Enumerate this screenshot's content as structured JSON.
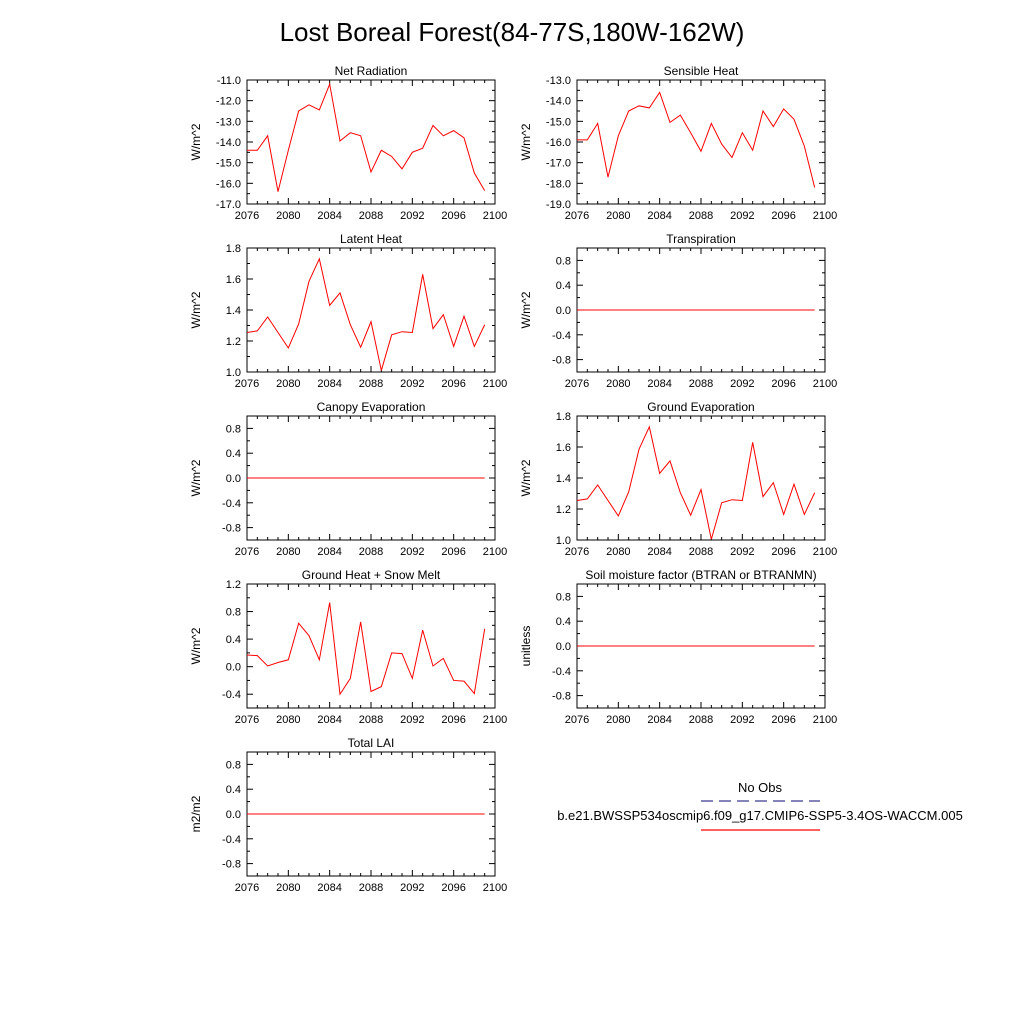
{
  "figure_title": "Lost Boreal Forest(84-77S,180W-162W)",
  "legend": {
    "entries": [
      {
        "label": "No Obs",
        "color": "#3b3b8f",
        "style": "dashed"
      },
      {
        "label": "b.e21.BWSSP534oscmip6.f09_g17.CMIP6-SSP5-3.4OS-WACCM.005",
        "color": "#ff0000",
        "style": "solid"
      }
    ]
  },
  "chart_data": [
    {
      "id": "net-radiation",
      "type": "line",
      "title": "Net Radiation",
      "ylabel": "W/m^2",
      "xlim": [
        2076,
        2100
      ],
      "ylim": [
        -17,
        -11
      ],
      "xticks": [
        "2076",
        "2080",
        "2084",
        "2088",
        "2092",
        "2096",
        "2100"
      ],
      "yticks": [
        "-11.0",
        "-12.0",
        "-13.0",
        "-14.0",
        "-15.0",
        "-16.0",
        "-17.0"
      ],
      "x": [
        2076,
        2077,
        2078,
        2079,
        2080,
        2081,
        2082,
        2083,
        2084,
        2085,
        2086,
        2087,
        2088,
        2089,
        2090,
        2091,
        2092,
        2093,
        2094,
        2095,
        2096,
        2097,
        2098,
        2099
      ],
      "series": [
        {
          "name": "b.e21.BWSSP534oscmip6.f09_g17.CMIP6-SSP5-3.4OS-WACCM.005",
          "color": "#ff0000",
          "values": [
            -14.4,
            -14.4,
            -13.7,
            -16.4,
            -14.4,
            -12.5,
            -12.2,
            -12.45,
            -11.2,
            -13.95,
            -13.55,
            -13.7,
            -15.45,
            -14.4,
            -14.7,
            -15.3,
            -14.5,
            -14.3,
            -13.2,
            -13.7,
            -13.45,
            -13.8,
            -15.5,
            -16.35
          ]
        }
      ]
    },
    {
      "id": "sensible-heat",
      "type": "line",
      "title": "Sensible Heat",
      "ylabel": "W/m^2",
      "xlim": [
        2076,
        2100
      ],
      "ylim": [
        -19,
        -13
      ],
      "xticks": [
        "2076",
        "2080",
        "2084",
        "2088",
        "2092",
        "2096",
        "2100"
      ],
      "yticks": [
        "-13.0",
        "-14.0",
        "-15.0",
        "-16.0",
        "-17.0",
        "-18.0",
        "-19.0"
      ],
      "x": [
        2076,
        2077,
        2078,
        2079,
        2080,
        2081,
        2082,
        2083,
        2084,
        2085,
        2086,
        2087,
        2088,
        2089,
        2090,
        2091,
        2092,
        2093,
        2094,
        2095,
        2096,
        2097,
        2098,
        2099
      ],
      "series": [
        {
          "name": "b.e21.BWSSP534oscmip6.f09_g17.CMIP6-SSP5-3.4OS-WACCM.005",
          "color": "#ff0000",
          "values": [
            -15.9,
            -15.9,
            -15.1,
            -17.7,
            -15.7,
            -14.5,
            -14.25,
            -14.35,
            -13.6,
            -15.05,
            -14.7,
            -15.55,
            -16.45,
            -15.1,
            -16.1,
            -16.75,
            -15.55,
            -16.4,
            -14.5,
            -15.25,
            -14.4,
            -14.9,
            -16.2,
            -18.2
          ]
        }
      ]
    },
    {
      "id": "latent-heat",
      "type": "line",
      "title": "Latent Heat",
      "ylabel": "W/m^2",
      "xlim": [
        2076,
        2100
      ],
      "ylim": [
        1.0,
        1.8
      ],
      "xticks": [
        "2076",
        "2080",
        "2084",
        "2088",
        "2092",
        "2096",
        "2100"
      ],
      "yticks": [
        "1.8",
        "1.6",
        "1.4",
        "1.2",
        "1.0"
      ],
      "x": [
        2076,
        2077,
        2078,
        2079,
        2080,
        2081,
        2082,
        2083,
        2084,
        2085,
        2086,
        2087,
        2088,
        2089,
        2090,
        2091,
        2092,
        2093,
        2094,
        2095,
        2096,
        2097,
        2098,
        2099
      ],
      "series": [
        {
          "name": "b.e21.BWSSP534oscmip6.f09_g17.CMIP6-SSP5-3.4OS-WACCM.005",
          "color": "#ff0000",
          "values": [
            1.255,
            1.265,
            1.355,
            1.255,
            1.155,
            1.31,
            1.585,
            1.73,
            1.43,
            1.51,
            1.305,
            1.16,
            1.325,
            1.01,
            1.24,
            1.26,
            1.255,
            1.63,
            1.28,
            1.37,
            1.165,
            1.36,
            1.165,
            1.305
          ]
        }
      ]
    },
    {
      "id": "transpiration",
      "type": "line",
      "title": "Transpiration",
      "ylabel": "W/m^2",
      "xlim": [
        2076,
        2100
      ],
      "ylim": [
        -1.0,
        1.0
      ],
      "xticks": [
        "2076",
        "2080",
        "2084",
        "2088",
        "2092",
        "2096",
        "2100"
      ],
      "yticks": [
        "0.8",
        "0.4",
        "0.0",
        "-0.4",
        "-0.8"
      ],
      "x": [
        2076,
        2077,
        2078,
        2079,
        2080,
        2081,
        2082,
        2083,
        2084,
        2085,
        2086,
        2087,
        2088,
        2089,
        2090,
        2091,
        2092,
        2093,
        2094,
        2095,
        2096,
        2097,
        2098,
        2099
      ],
      "series": [
        {
          "name": "b.e21.BWSSP534oscmip6.f09_g17.CMIP6-SSP5-3.4OS-WACCM.005",
          "color": "#ff0000",
          "values": [
            0,
            0,
            0,
            0,
            0,
            0,
            0,
            0,
            0,
            0,
            0,
            0,
            0,
            0,
            0,
            0,
            0,
            0,
            0,
            0,
            0,
            0,
            0,
            0
          ]
        }
      ]
    },
    {
      "id": "canopy-evaporation",
      "type": "line",
      "title": "Canopy Evaporation",
      "ylabel": "W/m^2",
      "xlim": [
        2076,
        2100
      ],
      "ylim": [
        -1.0,
        1.0
      ],
      "xticks": [
        "2076",
        "2080",
        "2084",
        "2088",
        "2092",
        "2096",
        "2100"
      ],
      "yticks": [
        "0.8",
        "0.4",
        "0.0",
        "-0.4",
        "-0.8"
      ],
      "x": [
        2076,
        2077,
        2078,
        2079,
        2080,
        2081,
        2082,
        2083,
        2084,
        2085,
        2086,
        2087,
        2088,
        2089,
        2090,
        2091,
        2092,
        2093,
        2094,
        2095,
        2096,
        2097,
        2098,
        2099
      ],
      "series": [
        {
          "name": "b.e21.BWSSP534oscmip6.f09_g17.CMIP6-SSP5-3.4OS-WACCM.005",
          "color": "#ff0000",
          "values": [
            0,
            0,
            0,
            0,
            0,
            0,
            0,
            0,
            0,
            0,
            0,
            0,
            0,
            0,
            0,
            0,
            0,
            0,
            0,
            0,
            0,
            0,
            0,
            0
          ]
        }
      ]
    },
    {
      "id": "ground-evaporation",
      "type": "line",
      "title": "Ground Evaporation",
      "ylabel": "W/m^2",
      "xlim": [
        2076,
        2100
      ],
      "ylim": [
        1.0,
        1.8
      ],
      "xticks": [
        "2076",
        "2080",
        "2084",
        "2088",
        "2092",
        "2096",
        "2100"
      ],
      "yticks": [
        "1.8",
        "1.6",
        "1.4",
        "1.2",
        "1.0"
      ],
      "x": [
        2076,
        2077,
        2078,
        2079,
        2080,
        2081,
        2082,
        2083,
        2084,
        2085,
        2086,
        2087,
        2088,
        2089,
        2090,
        2091,
        2092,
        2093,
        2094,
        2095,
        2096,
        2097,
        2098,
        2099
      ],
      "series": [
        {
          "name": "b.e21.BWSSP534oscmip6.f09_g17.CMIP6-SSP5-3.4OS-WACCM.005",
          "color": "#ff0000",
          "values": [
            1.255,
            1.265,
            1.355,
            1.255,
            1.155,
            1.31,
            1.585,
            1.73,
            1.43,
            1.51,
            1.305,
            1.16,
            1.325,
            1.005,
            1.24,
            1.26,
            1.255,
            1.63,
            1.28,
            1.37,
            1.165,
            1.36,
            1.165,
            1.305
          ]
        }
      ]
    },
    {
      "id": "ground-heat-snow-melt",
      "type": "line",
      "title": "Ground Heat + Snow Melt",
      "ylabel": "W/m^2",
      "xlim": [
        2076,
        2100
      ],
      "ylim": [
        -0.6,
        1.2
      ],
      "xticks": [
        "2076",
        "2080",
        "2084",
        "2088",
        "2092",
        "2096",
        "2100"
      ],
      "yticks": [
        "1.2",
        "0.8",
        "0.4",
        "0.0",
        "-0.4"
      ],
      "x": [
        2076,
        2077,
        2078,
        2079,
        2080,
        2081,
        2082,
        2083,
        2084,
        2085,
        2086,
        2087,
        2088,
        2089,
        2090,
        2091,
        2092,
        2093,
        2094,
        2095,
        2096,
        2097,
        2098,
        2099
      ],
      "series": [
        {
          "name": "b.e21.BWSSP534oscmip6.f09_g17.CMIP6-SSP5-3.4OS-WACCM.005",
          "color": "#ff0000",
          "values": [
            0.17,
            0.16,
            0.01,
            0.06,
            0.1,
            0.63,
            0.45,
            0.1,
            0.93,
            -0.4,
            -0.17,
            0.65,
            -0.36,
            -0.29,
            0.2,
            0.19,
            -0.17,
            0.53,
            0.01,
            0.12,
            -0.2,
            -0.21,
            -0.39,
            0.55
          ]
        }
      ]
    },
    {
      "id": "soil-moisture-factor",
      "type": "line",
      "title": "Soil moisture factor (BTRAN or BTRANMN)",
      "ylabel": "unitless",
      "xlim": [
        2076,
        2100
      ],
      "ylim": [
        -1.0,
        1.0
      ],
      "xticks": [
        "2076",
        "2080",
        "2084",
        "2088",
        "2092",
        "2096",
        "2100"
      ],
      "yticks": [
        "0.8",
        "0.4",
        "0.0",
        "-0.4",
        "-0.8"
      ],
      "x": [
        2076,
        2077,
        2078,
        2079,
        2080,
        2081,
        2082,
        2083,
        2084,
        2085,
        2086,
        2087,
        2088,
        2089,
        2090,
        2091,
        2092,
        2093,
        2094,
        2095,
        2096,
        2097,
        2098,
        2099
      ],
      "series": [
        {
          "name": "b.e21.BWSSP534oscmip6.f09_g17.CMIP6-SSP5-3.4OS-WACCM.005",
          "color": "#ff0000",
          "values": [
            0,
            0,
            0,
            0,
            0,
            0,
            0,
            0,
            0,
            0,
            0,
            0,
            0,
            0,
            0,
            0,
            0,
            0,
            0,
            0,
            0,
            0,
            0,
            0
          ]
        }
      ]
    },
    {
      "id": "total-lai",
      "type": "line",
      "title": "Total LAI",
      "ylabel": "m2/m2",
      "xlim": [
        2076,
        2100
      ],
      "ylim": [
        -1.0,
        1.0
      ],
      "xticks": [
        "2076",
        "2080",
        "2084",
        "2088",
        "2092",
        "2096",
        "2100"
      ],
      "yticks": [
        "0.8",
        "0.4",
        "0.0",
        "-0.4",
        "-0.8"
      ],
      "x": [
        2076,
        2077,
        2078,
        2079,
        2080,
        2081,
        2082,
        2083,
        2084,
        2085,
        2086,
        2087,
        2088,
        2089,
        2090,
        2091,
        2092,
        2093,
        2094,
        2095,
        2096,
        2097,
        2098,
        2099
      ],
      "series": [
        {
          "name": "b.e21.BWSSP534oscmip6.f09_g17.CMIP6-SSP5-3.4OS-WACCM.005",
          "color": "#ff0000",
          "values": [
            0,
            0,
            0,
            0,
            0,
            0,
            0,
            0,
            0,
            0,
            0,
            0,
            0,
            0,
            0,
            0,
            0,
            0,
            0,
            0,
            0,
            0,
            0,
            0
          ]
        }
      ]
    }
  ]
}
